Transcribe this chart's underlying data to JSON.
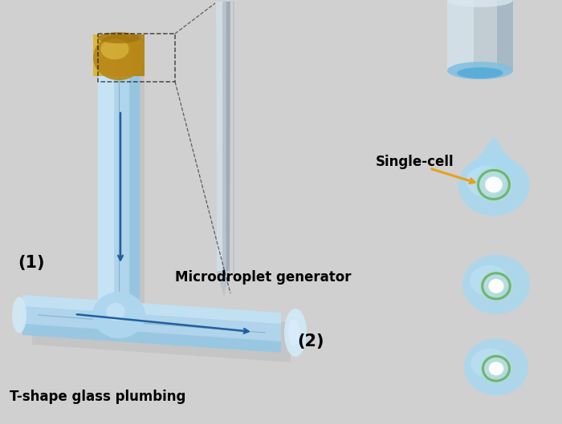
{
  "bg_color": "#d0d0d0",
  "tube_color_main": "#aed6ef",
  "tube_color_light": "#d0eaf8",
  "tube_color_dark": "#80b8d8",
  "tube_color_center": "#6090b0",
  "gold_main": "#c8a020",
  "gold_light": "#e8cc50",
  "gold_dark": "#a07010",
  "needle_main": "#b8c4cc",
  "needle_light": "#dce8f0",
  "needle_dark": "#8898a4",
  "shadow_color": "#a8a8a8",
  "arrow_color": "#2060a0",
  "orange_arrow": "#e8a020",
  "text_color": "#000000",
  "droplet_main": "#a8d8f0",
  "droplet_light": "#cceeff",
  "cell_ring": "#60b060",
  "cell_inner": "#ffffff",
  "cyl_main": "#c0ccd4",
  "cyl_light": "#dce8f0",
  "cyl_dark": "#90a8b8",
  "label1": "(1)",
  "label2": "(2)",
  "label_microdroplet": "Microdroplet generator",
  "label_tshape": "T-shape glass plumbing",
  "label_singlecell": "Single-cell"
}
